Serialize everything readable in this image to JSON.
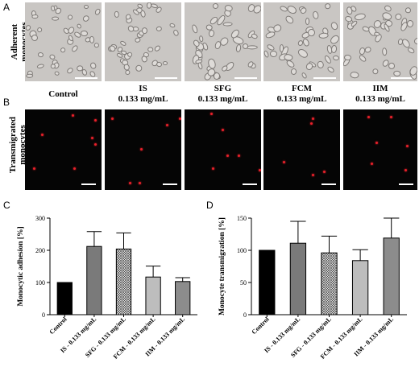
{
  "panel_labels": {
    "a": "A",
    "b": "B",
    "c": "C",
    "d": "D"
  },
  "row_labels": {
    "adherent": [
      "Adherent",
      "monocytes"
    ],
    "transmigrated": [
      "Transmigrated",
      "monocytes"
    ]
  },
  "conditions": [
    {
      "name": "Control",
      "conc": ""
    },
    {
      "name": "IS",
      "conc": "0.133 mg/mL"
    },
    {
      "name": "SFG",
      "conc": "0.133 mg/mL"
    },
    {
      "name": "FCM",
      "conc": "0.133 mg/mL"
    },
    {
      "name": "IIM",
      "conc": "0.133 mg/mL"
    }
  ],
  "colors": {
    "dot": "#e8202a",
    "bright_bg": "#c9c6c3",
    "dark_bg": "#050505"
  },
  "chart_data": [
    {
      "type": "bar",
      "ylabel": "Monocytic adhesion [%]",
      "ylim": [
        0,
        300
      ],
      "yticks": [
        0,
        100,
        200,
        300
      ],
      "categories": [
        "Control",
        "IS - 0.133 mg/mL",
        "SFG - 0.133 mg/mL",
        "FCM - 0.133 mg/mL",
        "IIM - 0.133 mg/mL"
      ],
      "values": [
        100,
        212,
        204,
        117,
        103
      ],
      "errors": [
        0,
        46,
        50,
        34,
        12
      ],
      "fills": [
        "#000000",
        "#7a7a7a",
        "pattern",
        "#bdbdbd",
        "#8c8c8c"
      ]
    },
    {
      "type": "bar",
      "ylabel": "Monocyte transmigration [%]",
      "ylim": [
        0,
        150
      ],
      "yticks": [
        0,
        50,
        100,
        150
      ],
      "categories": [
        "Control",
        "IS - 0.133 mg/mL",
        "SFG - 0.133 mg/mL",
        "FCM - 0.133 mg/mL",
        "IIM - 0.133 mg/mL"
      ],
      "values": [
        100,
        111,
        96,
        84,
        119
      ],
      "errors": [
        0,
        34,
        26,
        17,
        31
      ],
      "fills": [
        "#000000",
        "#7a7a7a",
        "pattern",
        "#bdbdbd",
        "#8c8c8c"
      ]
    }
  ]
}
